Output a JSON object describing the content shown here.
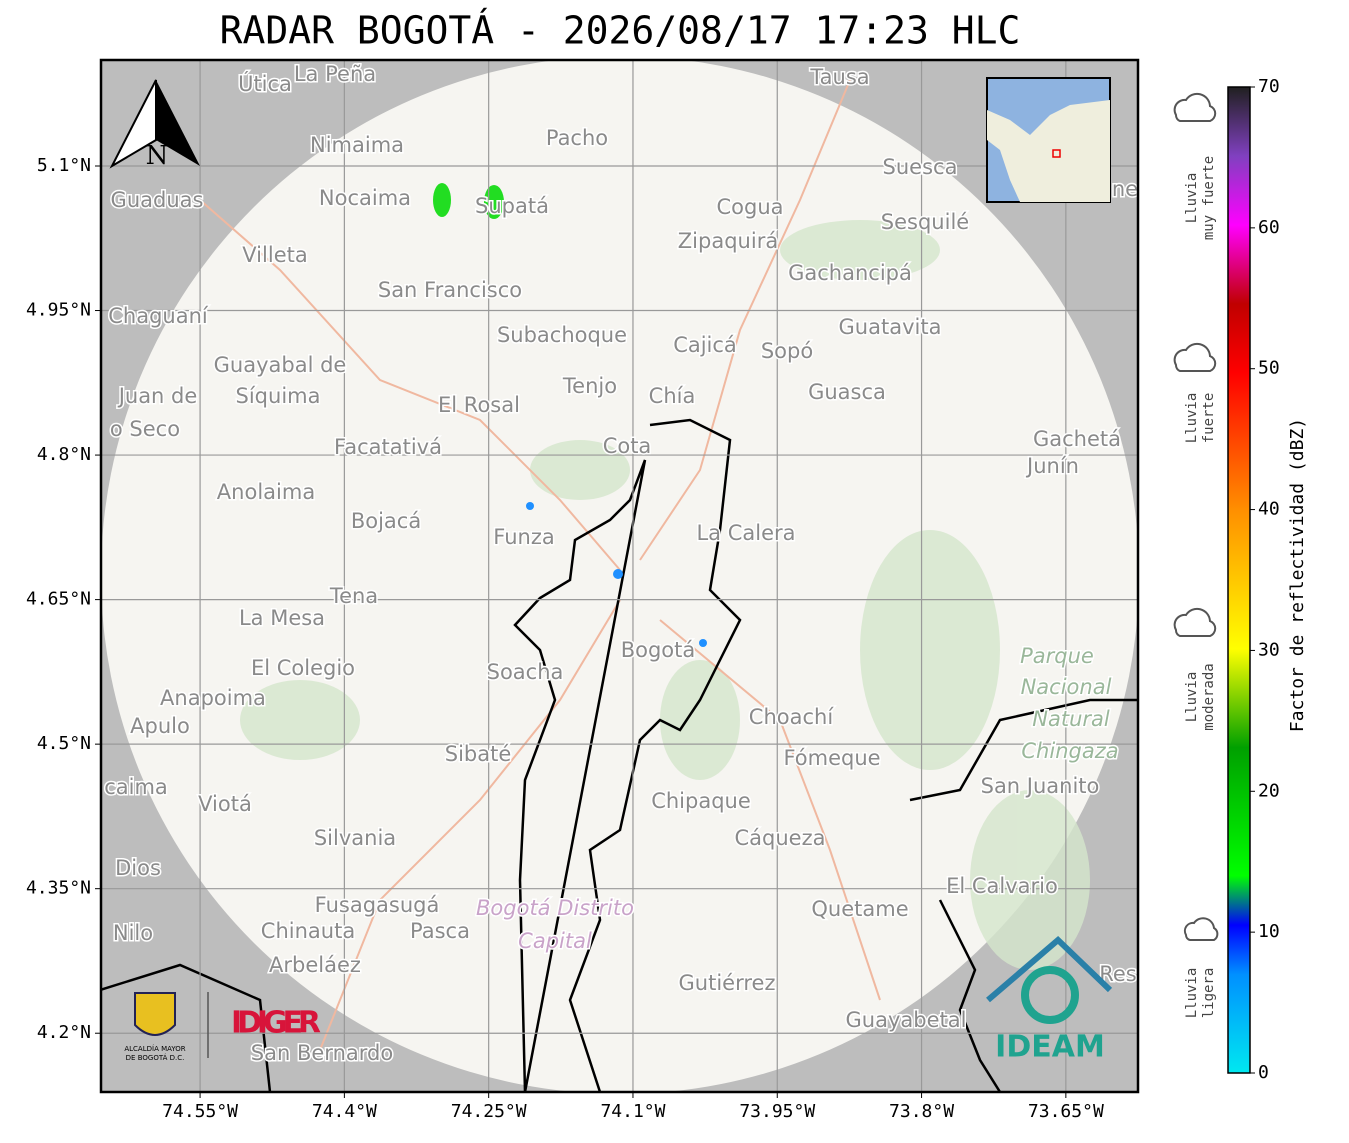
{
  "title": "RADAR BOGOTÁ - 2026/08/17 17:23 HLC",
  "map": {
    "xlim": [
      -74.653,
      -73.575
    ],
    "ylim": [
      4.139,
      5.21
    ],
    "xticks": [
      {
        "value": -74.55,
        "label": "74.55°W"
      },
      {
        "value": -74.4,
        "label": "74.4°W"
      },
      {
        "value": -74.25,
        "label": "74.25°W"
      },
      {
        "value": -74.1,
        "label": "74.1°W"
      },
      {
        "value": -73.95,
        "label": "73.95°W"
      },
      {
        "value": -73.8,
        "label": "73.8°W"
      },
      {
        "value": -73.65,
        "label": "73.65°W"
      }
    ],
    "yticks": [
      {
        "value": 5.1,
        "label": "5.1°N"
      },
      {
        "value": 4.95,
        "label": "4.95°N"
      },
      {
        "value": 4.8,
        "label": "4.8°N"
      },
      {
        "value": 4.65,
        "label": "4.65°N"
      },
      {
        "value": 4.5,
        "label": "4.5°N"
      },
      {
        "value": 4.35,
        "label": "4.35°N"
      },
      {
        "value": 4.2,
        "label": "4.2°N"
      }
    ],
    "north": "N",
    "places": [
      "Útica",
      "La Peña",
      "Tausa",
      "Pacho",
      "Nimaima",
      "Suesca",
      "Guaduas",
      "Nocaima",
      "Supatá",
      "Cogua",
      "Sesquilé",
      "Zipaquirá",
      "Villeta",
      "Gachancipá",
      "San Francisco",
      "Chaguaní",
      "Guatavita",
      "Subachoque",
      "Cajicá",
      "Sopó",
      "Guayabal de",
      "Síquima",
      "Juan de",
      "o Seco",
      "Tenjo",
      "Chía",
      "Guasca",
      "El Rosal",
      "Gachetá",
      "Junín",
      "Facatativá",
      "Cota",
      "Anolaima",
      "Bojacá",
      "La Calera",
      "Funza",
      "Tena",
      "La Mesa",
      "Bogotá",
      "Soacha",
      "El Colegio",
      "Anapoima",
      "Apulo",
      "Choachí",
      "Sibaté",
      "Fómeque",
      "San Juanito",
      "caima",
      "Viotá",
      "Chipaque",
      "Silvania",
      "Cáqueza",
      "Dios",
      "El Calvario",
      "Fusagasugá",
      "Quetame",
      "Nilo",
      "Chinauta",
      "Pasca",
      "Arbeláez",
      "Res",
      "Gutiérrez",
      "Guayabetal",
      "San Bernardo",
      "ne"
    ],
    "park": [
      "Parque",
      "Nacional",
      "Natural",
      "Chingaza"
    ],
    "capital": [
      "Bogotá Distrito",
      "Capital"
    ],
    "logos": {
      "alcaldia": "ALCALDÍA MAYOR",
      "alcaldia2": "DE BOGOTÁ D.C.",
      "idiger": "IDIGER",
      "ideam": "IDEAM"
    }
  },
  "colorbar": {
    "label": "Factor de reflectividad (dBZ)",
    "lim": [
      0,
      70
    ],
    "ticks": [
      0,
      10,
      20,
      30,
      40,
      50,
      60,
      70
    ]
  },
  "rain_levels": [
    [
      "Lluvia",
      "muy fuerte"
    ],
    [
      "Lluvia",
      "fuerte"
    ],
    [
      "Lluvia",
      "moderada"
    ],
    [
      "Lluvia",
      "ligera"
    ]
  ]
}
